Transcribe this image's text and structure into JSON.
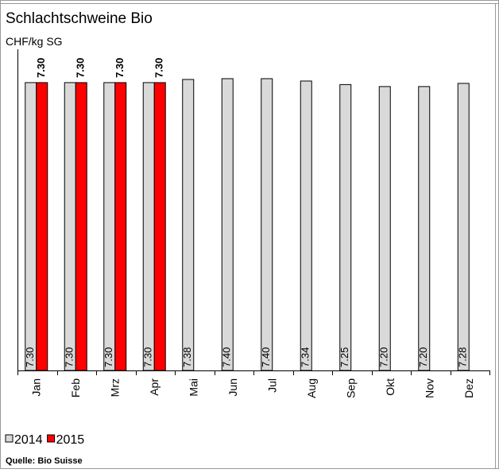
{
  "chart_data": {
    "type": "bar",
    "title": "Schlachtschweine Bio",
    "subtitle": "CHF/kg SG",
    "source": "Quelle: Bio Suisse",
    "categories": [
      "Jan",
      "Feb",
      "Mrz",
      "Apr",
      "Mai",
      "Jun",
      "Jul",
      "Aug",
      "Sep",
      "Okt",
      "Nov",
      "Dez"
    ],
    "ylim": [
      0,
      7.5
    ],
    "series": [
      {
        "name": "2014",
        "color": "#d9d9d9",
        "values": [
          7.3,
          7.3,
          7.3,
          7.3,
          7.38,
          7.4,
          7.4,
          7.34,
          7.25,
          7.2,
          7.2,
          7.28
        ],
        "value_labels": [
          "7.30",
          "7.30",
          "7.30",
          "7.30",
          "7.38",
          "7.40",
          "7.40",
          "7.34",
          "7.25",
          "7.20",
          "7.20",
          "7.28"
        ]
      },
      {
        "name": "2015",
        "color": "#ff0000",
        "values": [
          7.3,
          7.3,
          7.3,
          7.3,
          null,
          null,
          null,
          null,
          null,
          null,
          null,
          null
        ],
        "value_labels": [
          "7.30",
          "7.30",
          "7.30",
          "7.30",
          null,
          null,
          null,
          null,
          null,
          null,
          null,
          null
        ]
      }
    ]
  }
}
